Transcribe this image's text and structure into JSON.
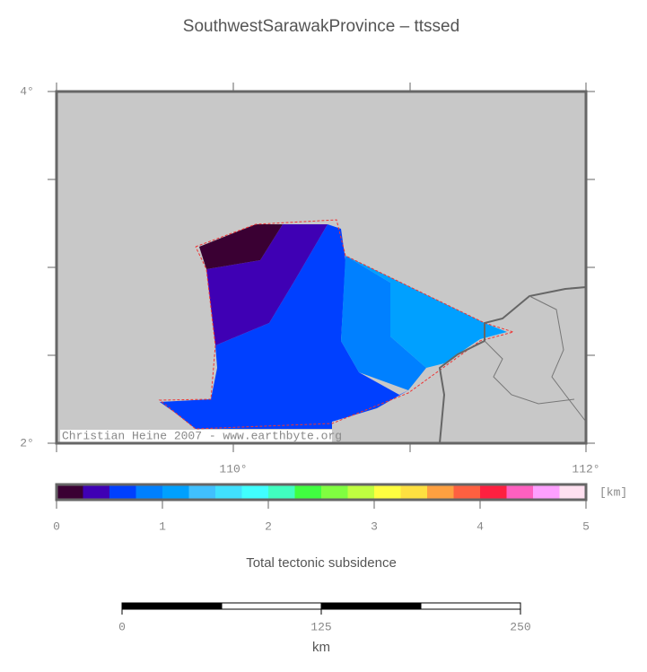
{
  "title": "SouthwestSarawakProvince – ttssed",
  "map": {
    "lat_labels": [
      "4°",
      "2°"
    ],
    "lon_labels": [
      "110°",
      "112°"
    ],
    "credit": "Christian Heine 2007 - www.earthbyte.org"
  },
  "colorbar": {
    "colors": [
      "#3a0033",
      "#3f00b4",
      "#0040ff",
      "#0080ff",
      "#00a0ff",
      "#40c0ff",
      "#40e0ff",
      "#40ffff",
      "#40ffc0",
      "#40ff40",
      "#80ff40",
      "#c0ff40",
      "#ffff40",
      "#ffe040",
      "#ffa040",
      "#ff6040",
      "#ff2040",
      "#ff60c0",
      "#ffa0ff",
      "#ffe0f0"
    ],
    "range": [
      0,
      5
    ],
    "ticks": [
      0,
      1,
      2,
      3,
      4,
      5
    ],
    "unit": "[km]",
    "label": "Total tectonic subsidence"
  },
  "scale_bar": {
    "range": [
      0,
      250
    ],
    "ticks": [
      0,
      125,
      250
    ],
    "unit": "km"
  }
}
